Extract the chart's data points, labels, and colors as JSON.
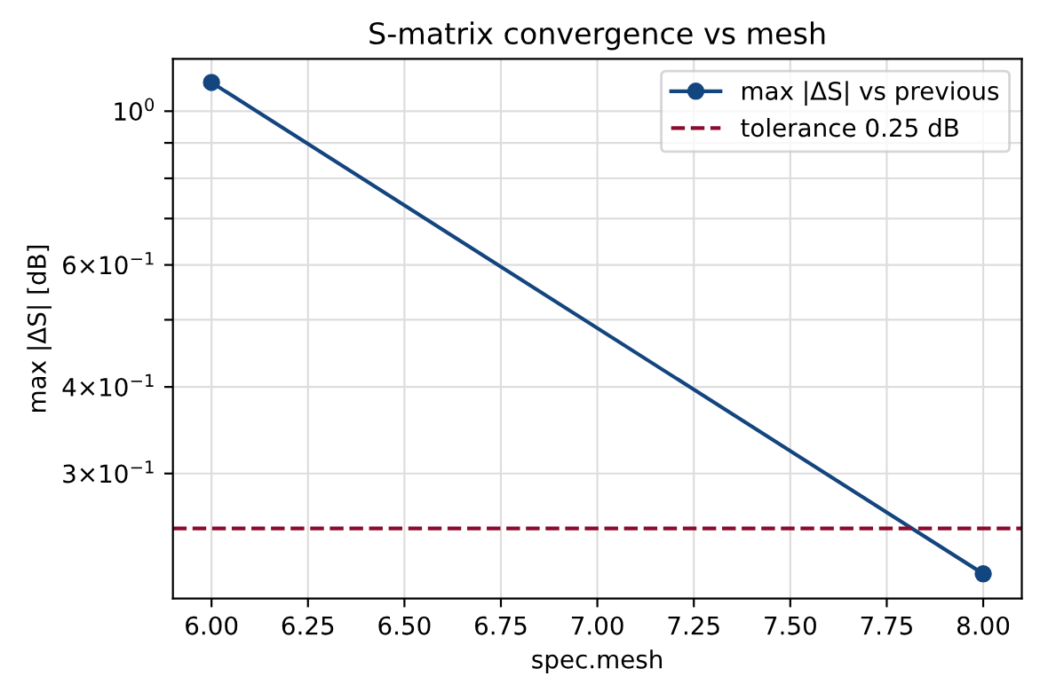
{
  "chart_data": {
    "type": "line",
    "title": "S-matrix convergence vs mesh",
    "xlabel": "spec.mesh",
    "ylabel": "max |ΔS| [dB]",
    "x": [
      6.0,
      8.0
    ],
    "series": [
      {
        "name": "max |ΔS| vs previous",
        "color": "#13457f",
        "values": [
          1.1,
          0.215
        ]
      }
    ],
    "marker": "circle",
    "line_style": "solid",
    "log": "y",
    "xlim": [
      5.9,
      8.1
    ],
    "xticks": [
      {
        "value": 6.0,
        "label": "6.00"
      },
      {
        "value": 6.25,
        "label": "6.25"
      },
      {
        "value": 6.5,
        "label": "6.50"
      },
      {
        "value": 6.75,
        "label": "6.75"
      },
      {
        "value": 7.0,
        "label": "7.00"
      },
      {
        "value": 7.25,
        "label": "7.25"
      },
      {
        "value": 7.5,
        "label": "7.50"
      },
      {
        "value": 7.75,
        "label": "7.75"
      },
      {
        "value": 8.0,
        "label": "8.00"
      }
    ],
    "ylim": [
      0.198,
      1.19
    ],
    "yticks": [
      {
        "value": 0.3,
        "label": "3×10$^{−1}$"
      },
      {
        "value": 0.4,
        "label": "4×10$^{−1}$"
      },
      {
        "value": 0.5,
        "label": null
      },
      {
        "value": 0.6,
        "label": "6×10$^{−1}$"
      },
      {
        "value": 0.7,
        "label": null
      },
      {
        "value": 0.8,
        "label": null
      },
      {
        "value": 0.9,
        "label": null
      },
      {
        "value": 1,
        "label": "10$^{0}$"
      }
    ],
    "ref_lines": [
      {
        "axis": "y",
        "value": 0.25,
        "label": "tolerance 0.25 dB",
        "color": "#8b0a2e",
        "line_style": "dashed"
      }
    ],
    "grid": true,
    "legend": "top right"
  }
}
